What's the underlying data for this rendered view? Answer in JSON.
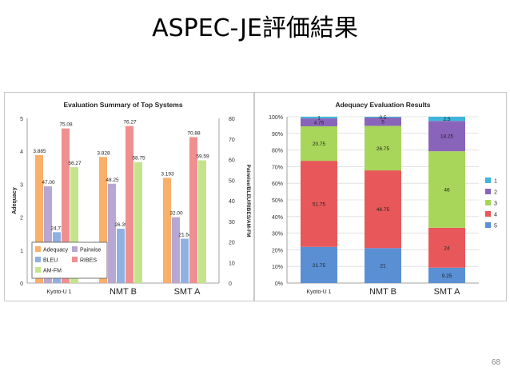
{
  "slide": {
    "title": "ASPEC-JE評価結果",
    "page_number": "68"
  },
  "chart_data": [
    {
      "type": "bar",
      "title": "Evaluation Summary of Top Systems",
      "ylabel": "Adequacy",
      "y2label": "Pairwise/BLEU/RIBES/AM-FM",
      "categories": [
        "Kyoto-U 1",
        "NMT B",
        "SMT A"
      ],
      "ylim": [
        0,
        5
      ],
      "y2lim": [
        0,
        80
      ],
      "yticks": [
        "0",
        "1",
        "2",
        "3",
        "4",
        "5"
      ],
      "y2ticks": [
        "0",
        "10",
        "20",
        "30",
        "40",
        "50",
        "60",
        "70",
        "80"
      ],
      "grid": false,
      "legend_position": "bottom-left",
      "series": [
        {
          "name": "Adequacy",
          "axis": "left",
          "color": "#f8b06a",
          "values": [
            3.885,
            3.828,
            3.193
          ],
          "labels": [
            "3.885",
            "3.828",
            "3.193"
          ]
        },
        {
          "name": "Pairwise",
          "axis": "right",
          "color": "#b9a7d3",
          "values": [
            47.0,
            48.25,
            32.0
          ],
          "labels": [
            "47.00",
            "48.25",
            "32.00"
          ]
        },
        {
          "name": "BLEU",
          "axis": "right",
          "color": "#8fb1e1",
          "values": [
            24.71,
            26.39,
            21.54
          ],
          "labels": [
            "24.71",
            "26.39",
            "21.54"
          ]
        },
        {
          "name": "RIBES",
          "axis": "right",
          "color": "#f08f8f",
          "values": [
            75.08,
            76.27,
            70.88
          ],
          "labels": [
            "75.08",
            "76.27",
            "70.88"
          ]
        },
        {
          "name": "AM-FM",
          "axis": "right",
          "color": "#c5e38b",
          "values": [
            56.27,
            58.75,
            59.59
          ],
          "labels": [
            "56.27",
            "58.75",
            "59.59"
          ]
        }
      ]
    },
    {
      "type": "bar",
      "stacked": true,
      "title": "Adequacy Evaluation Results",
      "categories": [
        "Kyoto-U 1",
        "NMT B",
        "SMT A"
      ],
      "ylim": [
        0,
        100
      ],
      "yticks": [
        "0%",
        "10%",
        "20%",
        "30%",
        "40%",
        "50%",
        "60%",
        "70%",
        "80%",
        "90%",
        "100%"
      ],
      "grid": true,
      "legend_position": "right",
      "series": [
        {
          "name": "5",
          "color": "#5a8fd4",
          "values": [
            21.75,
            21,
            9.25
          ],
          "labels": [
            "21.75",
            "21",
            "9.25"
          ]
        },
        {
          "name": "4",
          "color": "#e8585a",
          "values": [
            51.75,
            46.75,
            24
          ],
          "labels": [
            "51.75",
            "46.75",
            "24"
          ]
        },
        {
          "name": "3",
          "color": "#a8d65a",
          "values": [
            20.75,
            26.75,
            46
          ],
          "labels": [
            "20.75",
            "26.75",
            "46"
          ]
        },
        {
          "name": "2",
          "color": "#8a64ba",
          "values": [
            4.75,
            5,
            18.25
          ],
          "labels": [
            "4.75",
            "5",
            "18.25"
          ]
        },
        {
          "name": "1",
          "color": "#3fb6d9",
          "values": [
            1,
            0.5,
            2.5
          ],
          "labels": [
            "1",
            "0.5",
            "2.5"
          ]
        }
      ]
    }
  ]
}
